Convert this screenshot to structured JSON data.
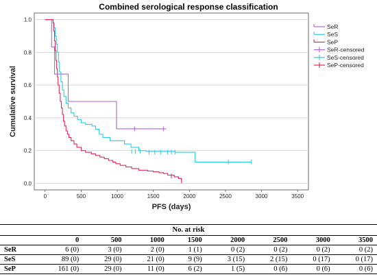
{
  "chart_data": {
    "type": "line",
    "title": "Combined serological response classification",
    "xlabel": "PFS (days)",
    "ylabel": "Cumulative survival",
    "xlim": [
      -150,
      3650
    ],
    "ylim": [
      -0.04,
      1.04
    ],
    "x_ticks": [
      0,
      500,
      1000,
      1500,
      2000,
      2500,
      3000,
      3500
    ],
    "y_ticks": [
      0.0,
      0.2,
      0.4,
      0.6,
      0.8,
      1.0
    ],
    "x_tick_labels": [
      "0",
      "500",
      "1000",
      "1500",
      "2000",
      "2500",
      "3000",
      "3500"
    ],
    "y_tick_labels": [
      "0.0",
      "0.2",
      "0.4",
      "0.6",
      "0.8",
      "1.0"
    ],
    "grid": "horizontal",
    "legend_position": "right",
    "legend": [
      "SeR",
      "SeS",
      "SeP",
      "SeR-censored",
      "SeS-censored",
      "SeP-censored"
    ],
    "series": [
      {
        "name": "SeR",
        "color": "#b163d6",
        "steps": [
          [
            0,
            1.0
          ],
          [
            90,
            0.833
          ],
          [
            130,
            0.667
          ],
          [
            320,
            0.5
          ],
          [
            990,
            0.333
          ],
          [
            1680,
            0.333
          ]
        ],
        "censored": [
          [
            1240,
            0.333
          ],
          [
            1640,
            0.333
          ]
        ]
      },
      {
        "name": "SeS",
        "color": "#27cde3",
        "steps": [
          [
            0,
            1.0
          ],
          [
            110,
            0.98
          ],
          [
            125,
            0.95
          ],
          [
            140,
            0.9
          ],
          [
            155,
            0.85
          ],
          [
            170,
            0.8
          ],
          [
            185,
            0.74
          ],
          [
            200,
            0.68
          ],
          [
            220,
            0.62
          ],
          [
            240,
            0.57
          ],
          [
            260,
            0.53
          ],
          [
            290,
            0.49
          ],
          [
            320,
            0.46
          ],
          [
            360,
            0.43
          ],
          [
            400,
            0.41
          ],
          [
            450,
            0.39
          ],
          [
            500,
            0.37
          ],
          [
            560,
            0.36
          ],
          [
            650,
            0.35
          ],
          [
            700,
            0.33
          ],
          [
            750,
            0.3
          ],
          [
            800,
            0.28
          ],
          [
            900,
            0.26
          ],
          [
            1100,
            0.24
          ],
          [
            1190,
            0.22
          ],
          [
            1300,
            0.2
          ],
          [
            1400,
            0.195
          ],
          [
            1800,
            0.19
          ],
          [
            2080,
            0.13
          ],
          [
            2860,
            0.13
          ]
        ],
        "censored": [
          [
            1200,
            0.195
          ],
          [
            1250,
            0.195
          ],
          [
            1320,
            0.195
          ],
          [
            1440,
            0.19
          ],
          [
            1520,
            0.19
          ],
          [
            1600,
            0.19
          ],
          [
            1700,
            0.19
          ],
          [
            1750,
            0.19
          ],
          [
            1800,
            0.19
          ],
          [
            2540,
            0.13
          ],
          [
            2860,
            0.13
          ]
        ]
      },
      {
        "name": "SeP",
        "color": "#e8255c",
        "steps": [
          [
            0,
            1.0
          ],
          [
            110,
            0.98
          ],
          [
            120,
            0.93
          ],
          [
            130,
            0.87
          ],
          [
            140,
            0.81
          ],
          [
            150,
            0.75
          ],
          [
            160,
            0.7
          ],
          [
            170,
            0.65
          ],
          [
            180,
            0.6
          ],
          [
            195,
            0.55
          ],
          [
            210,
            0.5
          ],
          [
            225,
            0.46
          ],
          [
            240,
            0.42
          ],
          [
            255,
            0.38
          ],
          [
            270,
            0.35
          ],
          [
            290,
            0.32
          ],
          [
            310,
            0.3
          ],
          [
            330,
            0.28
          ],
          [
            360,
            0.26
          ],
          [
            400,
            0.24
          ],
          [
            440,
            0.22
          ],
          [
            500,
            0.2
          ],
          [
            560,
            0.19
          ],
          [
            640,
            0.18
          ],
          [
            700,
            0.17
          ],
          [
            760,
            0.16
          ],
          [
            820,
            0.15
          ],
          [
            880,
            0.14
          ],
          [
            940,
            0.13
          ],
          [
            980,
            0.12
          ],
          [
            1040,
            0.11
          ],
          [
            1120,
            0.1
          ],
          [
            1200,
            0.09
          ],
          [
            1300,
            0.08
          ],
          [
            1420,
            0.075
          ],
          [
            1500,
            0.07
          ],
          [
            1580,
            0.065
          ],
          [
            1640,
            0.06
          ],
          [
            1700,
            0.05
          ],
          [
            1790,
            0.04
          ],
          [
            1850,
            0.03
          ],
          [
            1890,
            0.015
          ]
        ],
        "censored": [
          [
            1750,
            0.045
          ],
          [
            1890,
            0.015
          ]
        ]
      }
    ]
  },
  "risk_table": {
    "caption": "No. at risk",
    "columns": [
      "",
      "0",
      "500",
      "1000",
      "1500",
      "2000",
      "2500",
      "3000",
      "3500"
    ],
    "rows": [
      {
        "group": "SeR",
        "values": [
          "6 (0)",
          "3 (0)",
          "2 (0)",
          "1 (1)",
          "0 (2)",
          "0 (2)",
          "0 (2)",
          "0 (2)"
        ]
      },
      {
        "group": "SeS",
        "values": [
          "89 (0)",
          "29 (0)",
          "21 (0)",
          "9 (9)",
          "3 (15)",
          "2 (15)",
          "0 (17)",
          "0 (17)"
        ]
      },
      {
        "group": "SeP",
        "values": [
          "161 (0)",
          "29 (0)",
          "11 (0)",
          "6 (2)",
          "1 (5)",
          "0 (6)",
          "0 (6)",
          "0 (6)"
        ]
      }
    ]
  }
}
